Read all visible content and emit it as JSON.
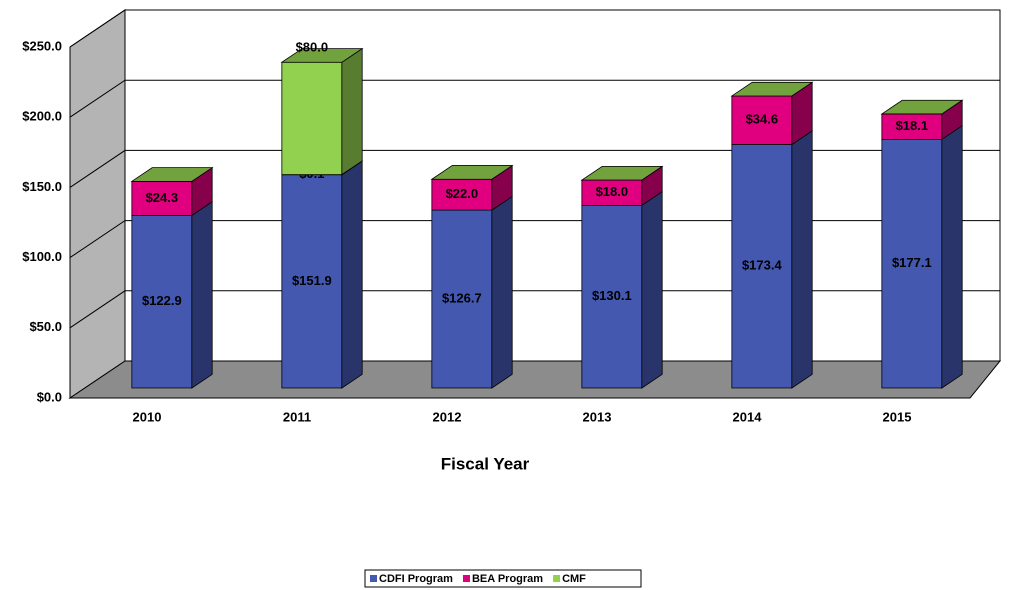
{
  "chart_data": {
    "type": "bar3d_stacked",
    "categories": [
      "2010",
      "2011",
      "2012",
      "2013",
      "2014",
      "2015"
    ],
    "series": [
      {
        "name": "CDFI Program",
        "color": "#4458b0",
        "values": [
          122.9,
          151.9,
          126.7,
          130.1,
          173.4,
          177.1
        ],
        "value_labels": [
          "$122.9",
          "$151.9",
          "$126.7",
          "$130.1",
          "$173.4",
          "$177.1"
        ]
      },
      {
        "name": "BEA Program",
        "color": "#e0007f",
        "values": [
          24.3,
          0.1,
          22.0,
          18.0,
          34.6,
          18.1
        ],
        "value_labels": [
          "$24.3",
          "$0.1",
          "$22.0",
          "$18.0",
          "$34.6",
          "$18.1"
        ]
      },
      {
        "name": "CMF",
        "color": "#92d050",
        "values": [
          null,
          80.0,
          null,
          null,
          null,
          null
        ],
        "value_labels": [
          null,
          "$80.0",
          null,
          null,
          null,
          null
        ]
      }
    ],
    "x_label": "Fiscal Year",
    "ylim": [
      0,
      250
    ],
    "yticks": [
      {
        "value": 0,
        "label": "$0.0"
      },
      {
        "value": 50,
        "label": "$50.0"
      },
      {
        "value": 100,
        "label": "$100.0"
      },
      {
        "value": 150,
        "label": "$150.0"
      },
      {
        "value": 200,
        "label": "$200.0"
      },
      {
        "value": 250,
        "label": "$250.0"
      }
    ],
    "grid": true,
    "legend": "bottom"
  }
}
